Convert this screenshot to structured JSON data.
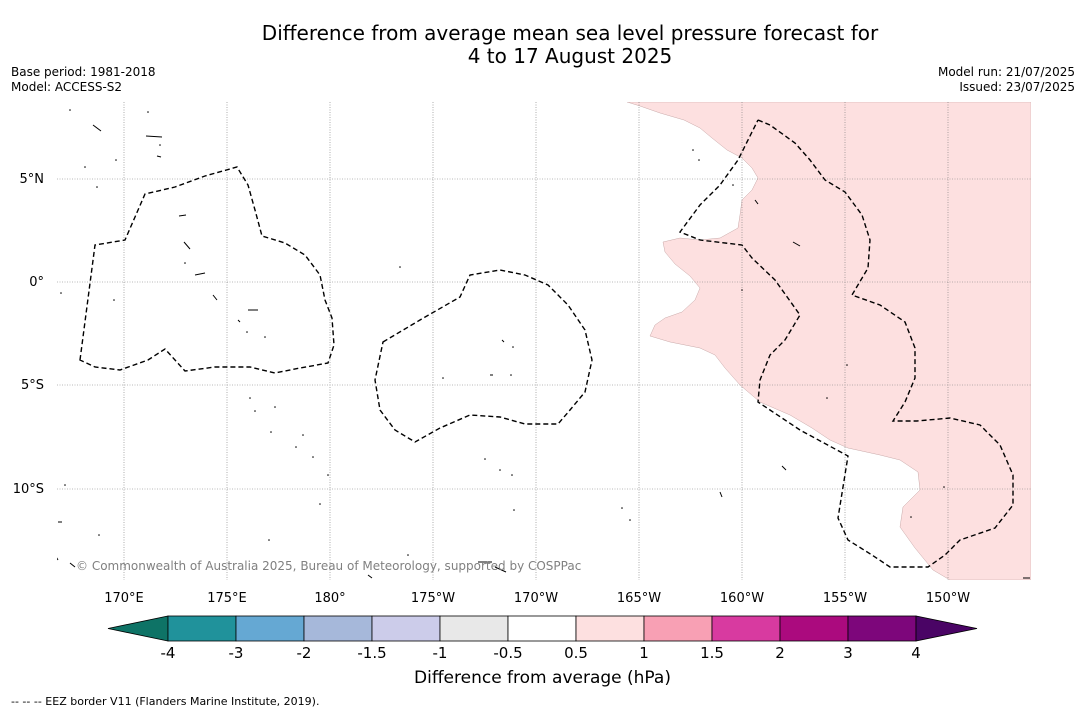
{
  "title_line1": "Difference from average mean sea level pressure forecast for",
  "title_line2": "4 to 17 August 2025",
  "base_period": "Base period: 1981-2018",
  "model": "Model: ACCESS-S2",
  "model_run": "Model run: 21/07/2025",
  "issued": "Issued: 23/07/2025",
  "lat_labels": [
    "5°N",
    "0°",
    "5°S",
    "10°S"
  ],
  "lon_labels": [
    "170°E",
    "175°E",
    "180°",
    "175°W",
    "170°W",
    "165°W",
    "160°W",
    "155°W",
    "150°W"
  ],
  "copyright": "© Commonwealth of Australia 2025, Bureau of Meteorology, supported by COSPPac",
  "colorbar": {
    "colors": [
      "#0e7366",
      "#20929b",
      "#65a8d3",
      "#a6b8da",
      "#ccccea",
      "#e8e8e8",
      "#ffffff",
      "#fde0e0",
      "#f8a0b4",
      "#d83aa0",
      "#ab0a7e",
      "#7d067b",
      "#4a0465"
    ],
    "ticks": [
      "-4",
      "-3",
      "-2",
      "-1.5",
      "-1",
      "-0.5",
      "0.5",
      "1",
      "1.5",
      "2",
      "3",
      "4"
    ],
    "label": "Difference from average (hPa)"
  },
  "footnote": "--  --  -- EEZ border V11 (Flanders Marine Institute, 2019)."
}
